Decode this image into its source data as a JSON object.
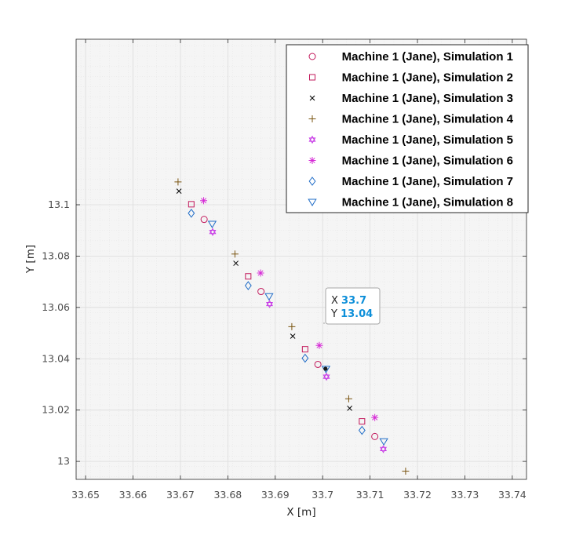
{
  "chart_data": {
    "type": "scatter",
    "xlabel": "X [m]",
    "ylabel": "Y [m]",
    "xlim": [
      33.648,
      33.743
    ],
    "ylim": [
      12.993,
      13.1645
    ],
    "xticks": [
      33.65,
      33.66,
      33.67,
      33.68,
      33.69,
      33.7,
      33.71,
      33.72,
      33.73,
      33.74
    ],
    "xtick_labels": [
      "33.65",
      "33.66",
      "33.67",
      "33.68",
      "33.69",
      "33.7",
      "33.71",
      "33.72",
      "33.73",
      "33.74"
    ],
    "yticks": [
      13.0,
      13.02,
      13.04,
      13.06,
      13.08,
      13.1
    ],
    "ytick_labels": [
      "13",
      "13.02",
      "13.04",
      "13.06",
      "13.08",
      "13.1"
    ],
    "grid": true,
    "minor_grid": true,
    "legend_position": "top-right",
    "series": [
      {
        "name": "Machine 1 (Jane), Simulation 1",
        "marker": "circle",
        "color": "#c2185b",
        "x": [
          33.675,
          33.687,
          33.699,
          33.711
        ],
        "y": [
          13.0943,
          13.0662,
          13.0378,
          13.0097
        ]
      },
      {
        "name": "Machine 1 (Jane), Simulation 2",
        "marker": "square",
        "color": "#c2185b",
        "x": [
          33.6723,
          33.6843,
          33.6963,
          33.7083
        ],
        "y": [
          13.1002,
          13.0721,
          13.0437,
          13.0156
        ]
      },
      {
        "name": "Machine 1 (Jane), Simulation 3",
        "marker": "x",
        "color": "#000000",
        "x": [
          33.6697,
          33.6817,
          33.6937,
          33.7057
        ],
        "y": [
          13.1053,
          13.0772,
          13.0488,
          13.0207
        ]
      },
      {
        "name": "Machine 1 (Jane), Simulation 4",
        "marker": "plus",
        "color": "#7a5410",
        "x": [
          33.6695,
          33.6815,
          33.6935,
          33.7055,
          33.7175
        ],
        "y": [
          13.1089,
          13.0808,
          13.0525,
          13.0244,
          12.9962
        ]
      },
      {
        "name": "Machine 1 (Jane), Simulation 5",
        "marker": "hexagram",
        "color": "#c83de6",
        "x": [
          33.6768,
          33.6888,
          33.7008,
          33.7128
        ],
        "y": [
          13.0894,
          13.0613,
          13.033,
          13.0048
        ]
      },
      {
        "name": "Machine 1 (Jane), Simulation 6",
        "marker": "asterisk",
        "color": "#d62ad6",
        "x": [
          33.6749,
          33.6869,
          33.6993,
          33.711
        ],
        "y": [
          13.1016,
          13.0734,
          13.0452,
          13.0171
        ]
      },
      {
        "name": "Machine 1 (Jane), Simulation 7",
        "marker": "diamond",
        "color": "#1f6cc7",
        "x": [
          33.6723,
          33.6843,
          33.6963,
          33.7083
        ],
        "y": [
          13.0967,
          13.0685,
          13.0402,
          13.0121
        ]
      },
      {
        "name": "Machine 1 (Jane), Simulation 8",
        "marker": "triangle-down",
        "color": "#1f6cc7",
        "x": [
          33.6767,
          33.6887,
          33.7007,
          33.7129
        ],
        "y": [
          13.0925,
          13.0643,
          13.036,
          13.0078
        ]
      }
    ],
    "datatip": {
      "x_label": "X",
      "x_value": "33.7",
      "y_label": "Y",
      "y_value": "13.04",
      "x": 33.7006,
      "y": 13.0361
    }
  }
}
